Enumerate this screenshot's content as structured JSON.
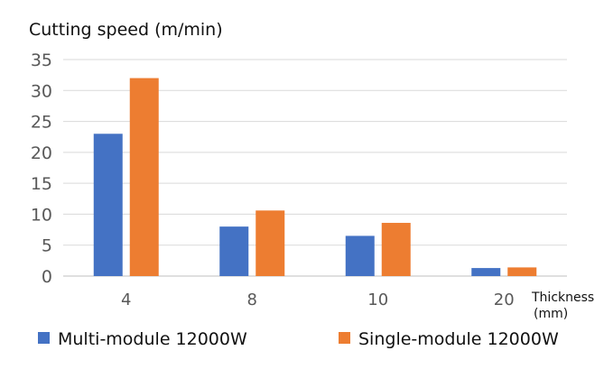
{
  "chart_data": {
    "type": "bar",
    "ylabel": "Cutting speed (m/min)",
    "xlabel_line1": "Thickness",
    "xlabel_line2": "(mm)",
    "categories": [
      "4",
      "8",
      "10",
      "20"
    ],
    "yticks": [
      "0",
      "5",
      "10",
      "15",
      "20",
      "25",
      "30",
      "35"
    ],
    "ylim": [
      0,
      35
    ],
    "grid": true,
    "legend_position": "bottom",
    "series": [
      {
        "name": "Multi-module 12000W",
        "color": "#4472c4",
        "values": [
          23,
          8,
          6.5,
          1.3
        ]
      },
      {
        "name": "Single-module 12000W",
        "color": "#ed7d31",
        "values": [
          32,
          10.6,
          8.6,
          1.4
        ]
      }
    ]
  }
}
